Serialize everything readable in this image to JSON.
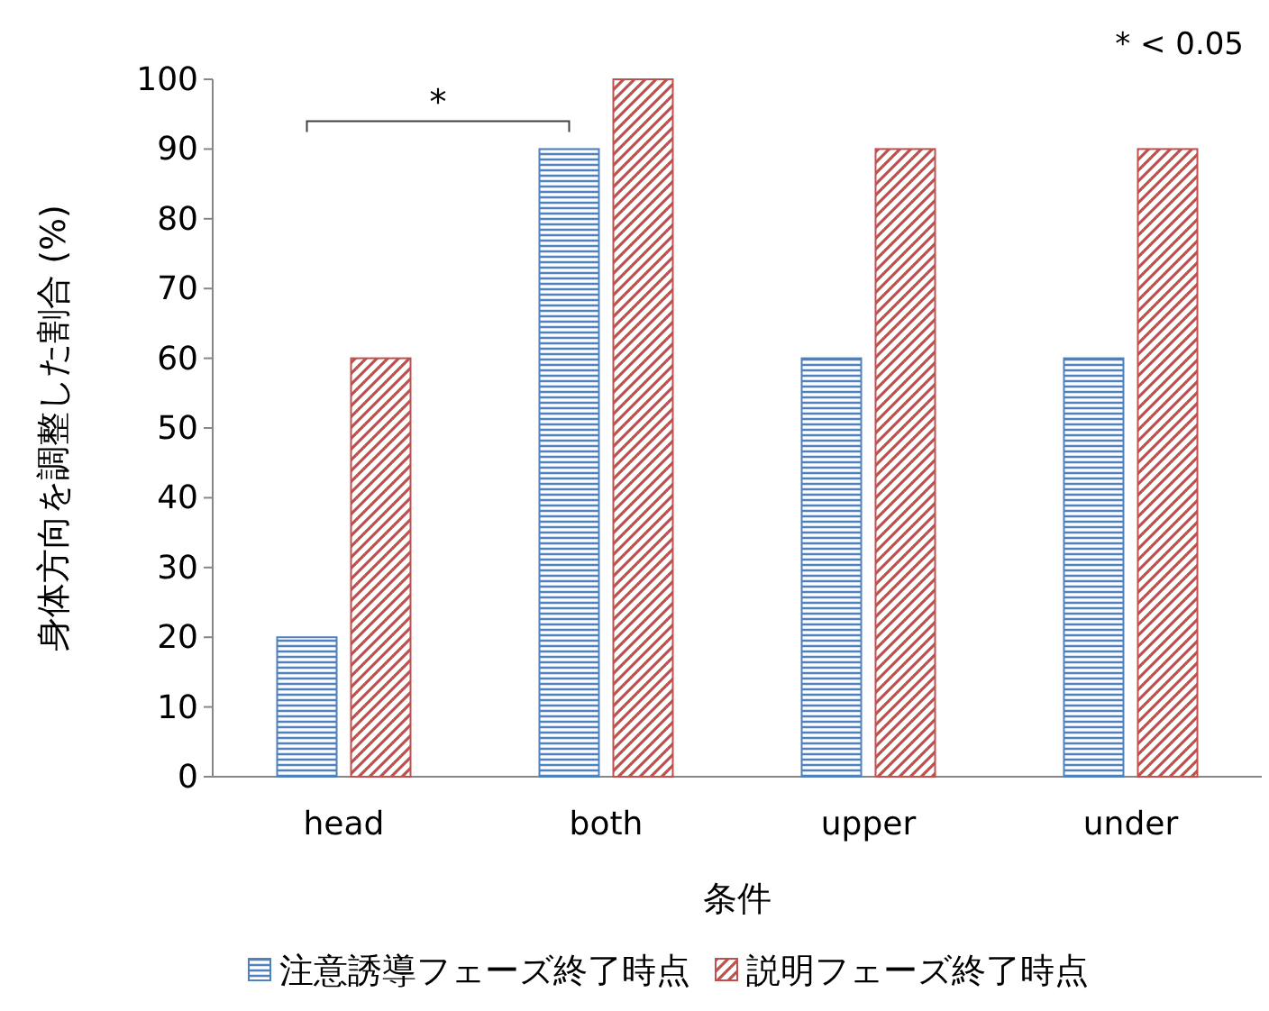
{
  "chart_data": {
    "type": "bar",
    "xlabel": "条件",
    "ylabel": "身体方向を調整した割合 (%)",
    "categories": [
      "head",
      "both",
      "upper",
      "under"
    ],
    "series": [
      {
        "name": "注意誘導フェーズ終了時点",
        "color": "#4f81bd",
        "values": [
          20,
          90,
          60,
          60
        ]
      },
      {
        "name": "説明フェーズ終了時点",
        "color": "#c0504d",
        "values": [
          60,
          100,
          90,
          90
        ]
      }
    ],
    "ylim": [
      0,
      100
    ],
    "yticks": [
      0,
      10,
      20,
      30,
      40,
      50,
      60,
      70,
      80,
      90,
      100
    ],
    "legend": "bottom",
    "annotations": [
      "* < 0.05",
      "*"
    ]
  }
}
